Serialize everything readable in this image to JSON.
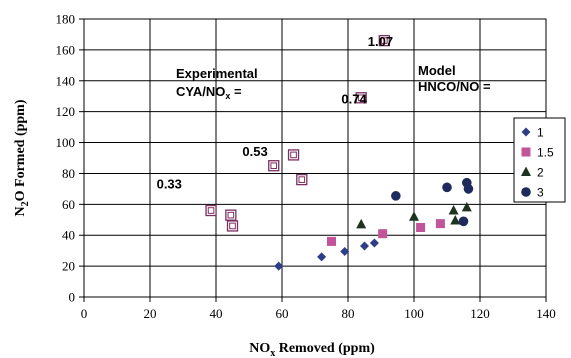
{
  "chart_data": {
    "type": "scatter",
    "xlabel_main": "NO",
    "xlabel_sub": "x",
    "xlabel_rest": " Removed (ppm)",
    "ylabel_pre": "N",
    "ylabel_sub": "2",
    "ylabel_rest": "O Formed (ppm)",
    "xlim": [
      0,
      140
    ],
    "ylim": [
      0,
      180
    ],
    "xticks": [
      "0",
      "20",
      "40",
      "60",
      "80",
      "100",
      "120",
      "140"
    ],
    "yticks": [
      "0",
      "20",
      "40",
      "60",
      "80",
      "100",
      "120",
      "140",
      "160",
      "180"
    ],
    "grid": true,
    "annotations": {
      "experimental_title": "Experimental",
      "experimental_ratio_pre": "CYA/NO",
      "experimental_ratio_sub": "x",
      "experimental_ratio_post": " =",
      "model_title": "Model",
      "model_ratio": "HNCO/NO ="
    },
    "ratio_labels": [
      {
        "text": "0.33",
        "x": 22,
        "y": 73
      },
      {
        "text": "0.53",
        "x": 48,
        "y": 94
      },
      {
        "text": "0.74",
        "x": 78,
        "y": 128
      },
      {
        "text": "1.07",
        "x": 86,
        "y": 165
      }
    ],
    "experimental": {
      "marker": "open-square",
      "color": "#7b2f5e",
      "points": [
        [
          38.5,
          56
        ],
        [
          44.5,
          53
        ],
        [
          45,
          46
        ],
        [
          57.5,
          85
        ],
        [
          63.5,
          92
        ],
        [
          66,
          76
        ],
        [
          84,
          129
        ],
        [
          91,
          166
        ]
      ]
    },
    "legend_position": "right",
    "series": [
      {
        "name": "1",
        "marker": "diamond",
        "color": "#2e3d8a",
        "points": [
          [
            59,
            20
          ],
          [
            72,
            26
          ],
          [
            79,
            29.5
          ],
          [
            85,
            33
          ],
          [
            88,
            35
          ]
        ]
      },
      {
        "name": "1.5",
        "marker": "square",
        "color": "#c2549a",
        "points": [
          [
            75,
            36
          ],
          [
            90.5,
            41
          ],
          [
            102,
            45
          ],
          [
            108,
            47.5
          ]
        ]
      },
      {
        "name": "2",
        "marker": "triangle",
        "color": "#1e3320",
        "points": [
          [
            84,
            47
          ],
          [
            100,
            52
          ],
          [
            112,
            56
          ],
          [
            112.5,
            49.5
          ],
          [
            116,
            58
          ]
        ]
      },
      {
        "name": "3",
        "marker": "circle",
        "color": "#1f2a5c",
        "points": [
          [
            94.5,
            65.5
          ],
          [
            110,
            71
          ],
          [
            115,
            49
          ],
          [
            116,
            74
          ],
          [
            116.5,
            70
          ]
        ]
      }
    ]
  }
}
